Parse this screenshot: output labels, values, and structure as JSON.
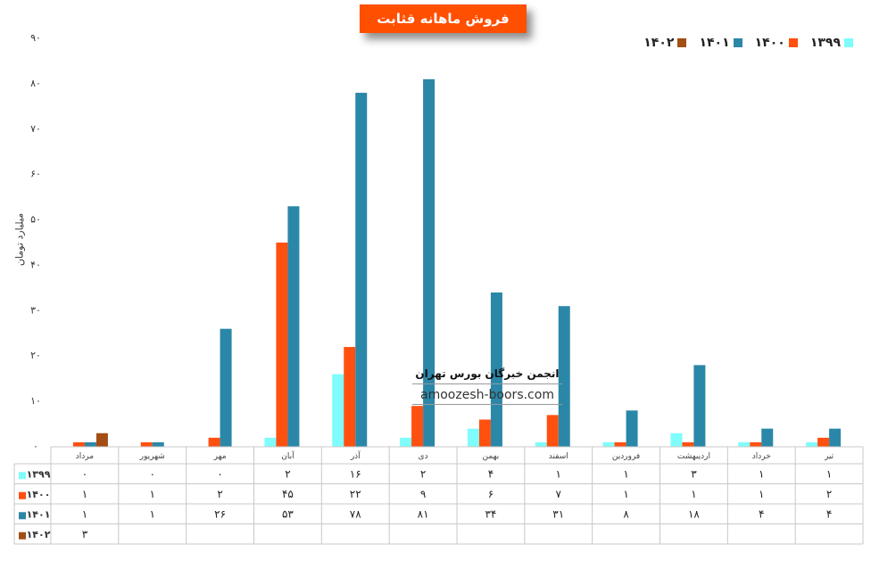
{
  "chart_data": {
    "type": "bar",
    "title": "فروش ماهانه قثابت",
    "ylabel": "میلیارد تومان",
    "ylim": [
      0,
      90
    ],
    "yticks": [
      "۰",
      "۱۰",
      "۲۰",
      "۳۰",
      "۴۰",
      "۵۰",
      "۶۰",
      "۷۰",
      "۸۰",
      "۹۰"
    ],
    "grid": false,
    "legend_position": "top-right",
    "categories": [
      "مرداد",
      "شهریور",
      "مهر",
      "آبان",
      "آذر",
      "دی",
      "بهمن",
      "اسفند",
      "فروردین",
      "اردیبهشت",
      "خرداد",
      "تیر"
    ],
    "series": [
      {
        "name": "۱۳۹۹",
        "color": "#7ffcfc",
        "values": [
          0,
          0,
          0,
          2,
          16,
          2,
          4,
          1,
          1,
          3,
          1,
          1
        ],
        "labels": [
          "۰",
          "۰",
          "۰",
          "۲",
          "۱۶",
          "۲",
          "۴",
          "۱",
          "۱",
          "۳",
          "۱",
          "۱"
        ]
      },
      {
        "name": "۱۴۰۰",
        "color": "#ff5010",
        "values": [
          1,
          1,
          2,
          45,
          22,
          9,
          6,
          7,
          1,
          1,
          1,
          2
        ],
        "labels": [
          "۱",
          "۱",
          "۲",
          "۴۵",
          "۲۲",
          "۹",
          "۶",
          "۷",
          "۱",
          "۱",
          "۱",
          "۲"
        ]
      },
      {
        "name": "۱۴۰۱",
        "color": "#2b87a8",
        "values": [
          1,
          1,
          26,
          53,
          78,
          81,
          34,
          31,
          8,
          18,
          4,
          4
        ],
        "labels": [
          "۱",
          "۱",
          "۲۶",
          "۵۳",
          "۷۸",
          "۸۱",
          "۳۴",
          "۳۱",
          "۸",
          "۱۸",
          "۴",
          "۴"
        ]
      },
      {
        "name": "۱۴۰۲",
        "color": "#a34e14",
        "values": [
          3,
          null,
          null,
          null,
          null,
          null,
          null,
          null,
          null,
          null,
          null,
          null
        ],
        "labels": [
          "۳",
          "",
          "",
          "",
          "",
          "",
          "",
          "",
          "",
          "",
          "",
          ""
        ]
      }
    ]
  },
  "legend_order": [
    "۱۴۰۲",
    "۱۴۰۱",
    "۱۴۰۰",
    "۱۳۹۹"
  ],
  "watermark": {
    "title": "انجمن خبرگان بورس تهران",
    "url": "amoozesh-boors.com"
  }
}
